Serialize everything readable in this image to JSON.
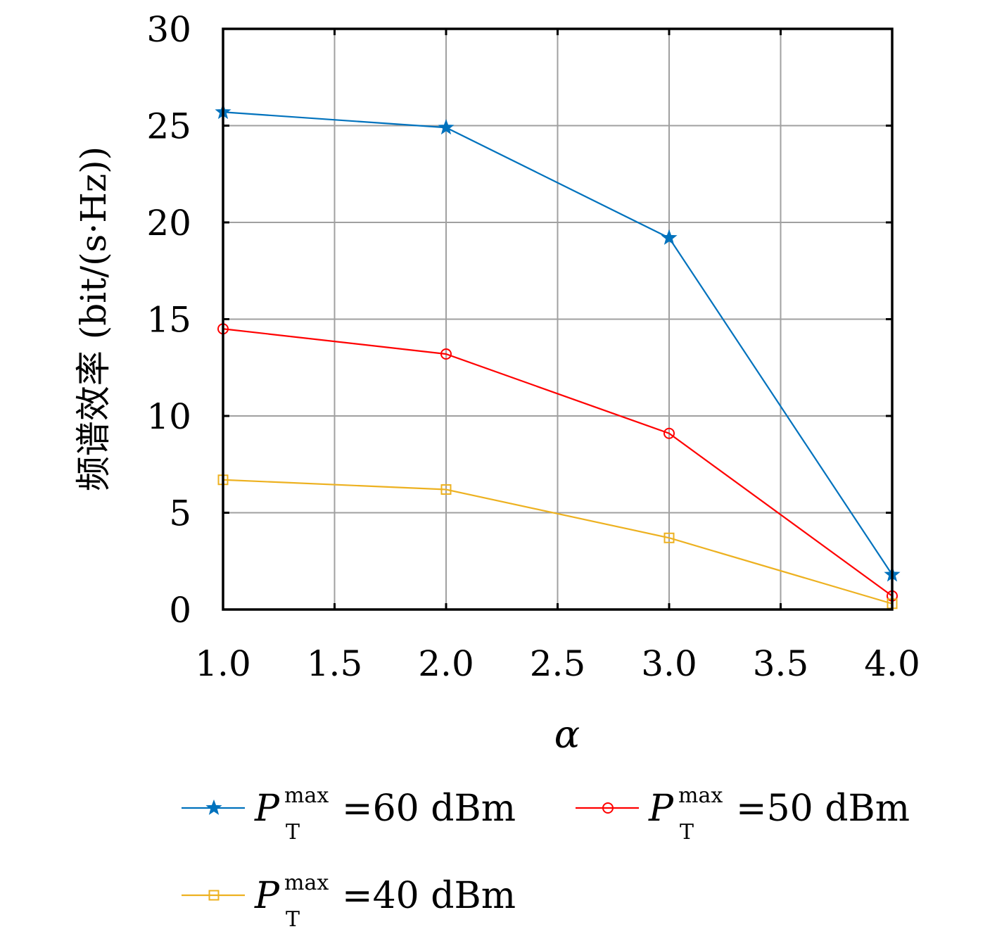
{
  "chart_data": {
    "type": "line",
    "xlabel": "α",
    "ylabel": "频谱效率 (bit/(s·Hz))",
    "xlim": [
      1.0,
      4.0
    ],
    "ylim": [
      0,
      30
    ],
    "xticks": [
      1.0,
      1.5,
      2.0,
      2.5,
      3.0,
      3.5,
      4.0
    ],
    "xtick_labels": [
      "1.0",
      "1.5",
      "2.0",
      "2.5",
      "3.0",
      "3.5",
      "4.0"
    ],
    "yticks": [
      0,
      5,
      10,
      15,
      20,
      25,
      30
    ],
    "ytick_labels": [
      "0",
      "5",
      "10",
      "15",
      "20",
      "25",
      "30"
    ],
    "grid": true,
    "legend_position": "bottom",
    "x": [
      1.0,
      2.0,
      3.0,
      4.0
    ],
    "series": [
      {
        "name": "P_T^max=60 dBm",
        "label_main": "P",
        "label_sub": "T",
        "label_sup": "max",
        "label_rest": "=60 dBm",
        "values": [
          25.7,
          24.9,
          19.2,
          1.8
        ],
        "color": "#0072BD",
        "marker": "star"
      },
      {
        "name": "P_T^max=50 dBm",
        "label_main": "P",
        "label_sub": "T",
        "label_sup": "max",
        "label_rest": "=50 dBm",
        "values": [
          14.5,
          13.2,
          9.1,
          0.7
        ],
        "color": "#FF0000",
        "marker": "circle"
      },
      {
        "name": "P_T^max=40 dBm",
        "label_main": "P",
        "label_sub": "T",
        "label_sup": "max",
        "label_rest": "=40 dBm",
        "values": [
          6.7,
          6.2,
          3.7,
          0.3
        ],
        "color": "#EDB120",
        "marker": "square"
      }
    ]
  }
}
